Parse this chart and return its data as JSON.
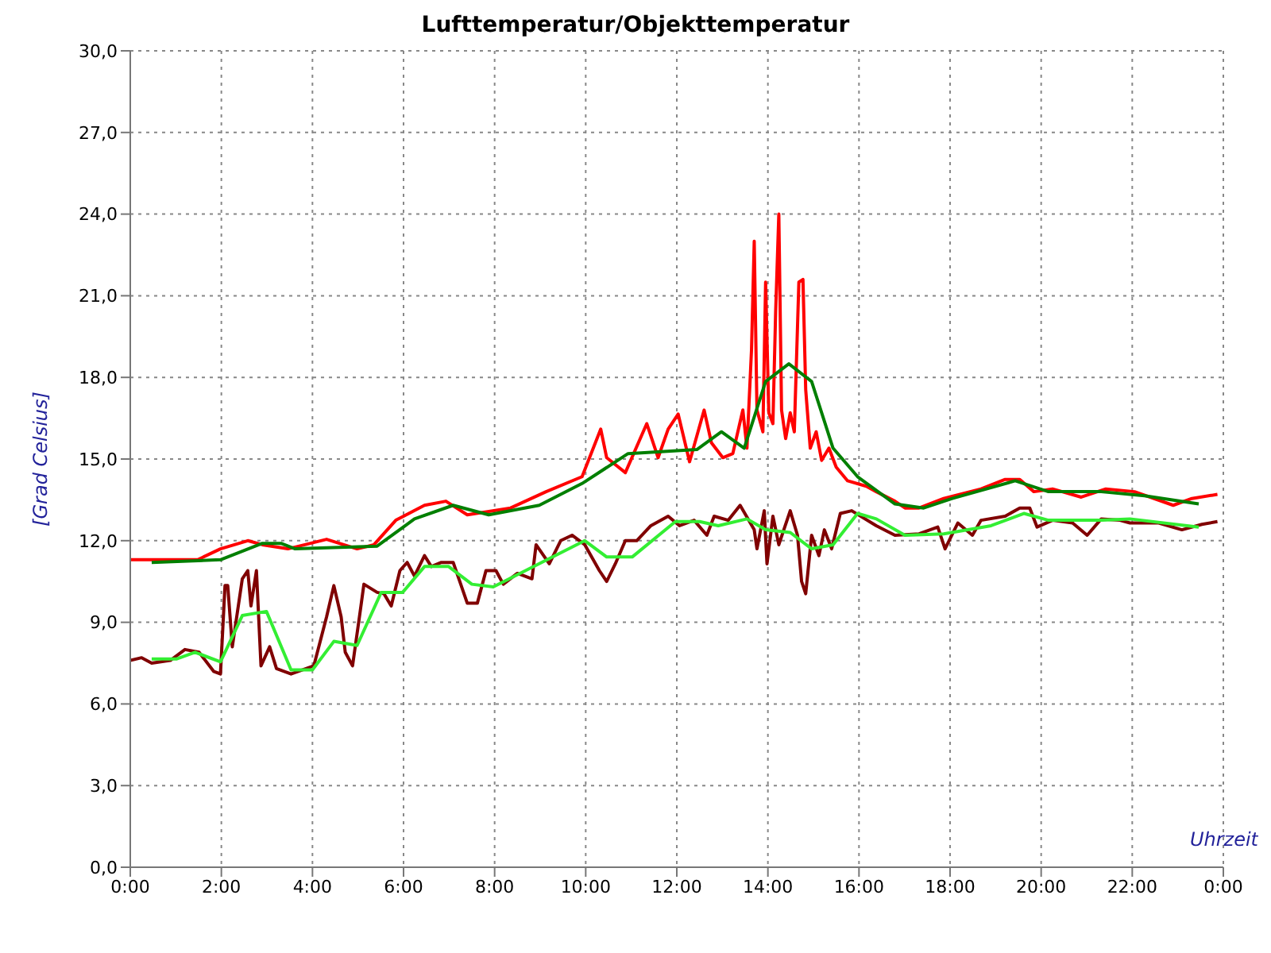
{
  "chart_data": {
    "type": "line",
    "title": "Lufttemperatur/Objekttemperatur",
    "xlabel": "Uhrzeit",
    "ylabel": "[Grad Celsius]",
    "xlim": [
      0,
      24
    ],
    "ylim": [
      0,
      30
    ],
    "xticks": [
      {
        "value": 0,
        "label": "0:00"
      },
      {
        "value": 2,
        "label": "2:00"
      },
      {
        "value": 4,
        "label": "4:00"
      },
      {
        "value": 6,
        "label": "6:00"
      },
      {
        "value": 8,
        "label": "8:00"
      },
      {
        "value": 10,
        "label": "10:00"
      },
      {
        "value": 12,
        "label": "12:00"
      },
      {
        "value": 14,
        "label": "14:00"
      },
      {
        "value": 16,
        "label": "16:00"
      },
      {
        "value": 18,
        "label": "18:00"
      },
      {
        "value": 20,
        "label": "20:00"
      },
      {
        "value": 22,
        "label": "22:00"
      },
      {
        "value": 24,
        "label": "0:00"
      }
    ],
    "yticks": [
      {
        "value": 0,
        "label": "0,0"
      },
      {
        "value": 3,
        "label": "3,0"
      },
      {
        "value": 6,
        "label": "6,0"
      },
      {
        "value": 9,
        "label": "9,0"
      },
      {
        "value": 12,
        "label": "12,0"
      },
      {
        "value": 15,
        "label": "15,0"
      },
      {
        "value": 18,
        "label": "18,0"
      },
      {
        "value": 21,
        "label": "21,0"
      },
      {
        "value": 24,
        "label": "24,0"
      },
      {
        "value": 27,
        "label": "27,0"
      },
      {
        "value": 30,
        "label": "30,0"
      }
    ],
    "grid": true,
    "series": [
      {
        "color": "#ff0000",
        "x": [
          0,
          1.48,
          1.98,
          2.58,
          2.9,
          3.46,
          4.31,
          4.98,
          5.35,
          5.83,
          6.46,
          6.93,
          7.4,
          8.35,
          9.13,
          9.92,
          10.33,
          10.46,
          10.87,
          11.34,
          11.59,
          11.81,
          12.03,
          12.28,
          12.6,
          12.76,
          13.01,
          13.23,
          13.45,
          13.54,
          13.64,
          13.7,
          13.76,
          13.89,
          13.95,
          14.02,
          14.11,
          14.17,
          14.24,
          14.3,
          14.39,
          14.49,
          14.58,
          14.68,
          14.77,
          14.83,
          14.93,
          15.06,
          15.18,
          15.34,
          15.5,
          15.75,
          16.16,
          16.38,
          16.79,
          17.01,
          17.32,
          17.86,
          18.68,
          19.21,
          19.53,
          19.84,
          20.25,
          20.88,
          21.42,
          22.05,
          22.9,
          23.31,
          23.87
        ],
        "values": [
          11.3,
          11.3,
          11.7,
          12.0,
          11.85,
          11.7,
          12.05,
          11.7,
          11.85,
          12.75,
          13.3,
          13.45,
          12.95,
          13.2,
          13.8,
          14.35,
          16.1,
          15.05,
          14.5,
          16.3,
          15.05,
          16.1,
          16.65,
          14.9,
          16.8,
          15.6,
          15.05,
          15.2,
          16.8,
          15.4,
          19.0,
          23.0,
          16.8,
          16.0,
          21.5,
          16.7,
          16.3,
          20.4,
          24.0,
          16.8,
          15.75,
          16.7,
          16.0,
          21.5,
          21.6,
          17.55,
          15.4,
          16.0,
          14.95,
          15.4,
          14.7,
          14.2,
          14.0,
          13.8,
          13.45,
          13.2,
          13.2,
          13.55,
          13.9,
          14.25,
          14.25,
          13.8,
          13.9,
          13.6,
          13.9,
          13.8,
          13.3,
          13.55,
          13.7
        ]
      },
      {
        "color": "#007f00",
        "x": [
          0.47,
          1.98,
          2.9,
          3.31,
          3.62,
          5.42,
          6.24,
          7.09,
          7.87,
          8.98,
          9.92,
          10.93,
          12.44,
          12.98,
          13.48,
          13.95,
          14.46,
          14.96,
          15.43,
          15.97,
          16.79,
          17.42,
          18.05,
          19.43,
          20.16,
          21.32,
          22.27,
          23.46
        ],
        "values": [
          11.2,
          11.3,
          11.9,
          11.9,
          11.7,
          11.8,
          12.8,
          13.3,
          12.95,
          13.3,
          14.1,
          15.2,
          15.35,
          16.0,
          15.4,
          17.85,
          18.5,
          17.85,
          15.4,
          14.35,
          13.35,
          13.2,
          13.55,
          14.2,
          13.8,
          13.8,
          13.65,
          13.35
        ]
      },
      {
        "color": "#800000",
        "x": [
          0,
          0.25,
          0.47,
          0.88,
          1.2,
          1.51,
          1.83,
          1.98,
          2.08,
          2.14,
          2.24,
          2.46,
          2.58,
          2.65,
          2.77,
          2.87,
          3.06,
          3.21,
          3.53,
          4.03,
          4.31,
          4.47,
          4.63,
          4.72,
          4.88,
          5.04,
          5.13,
          5.42,
          5.57,
          5.73,
          5.92,
          6.08,
          6.24,
          6.46,
          6.61,
          6.83,
          7.09,
          7.4,
          7.62,
          7.81,
          8.03,
          8.19,
          8.5,
          8.82,
          8.91,
          9.2,
          9.45,
          9.7,
          9.98,
          10.3,
          10.46,
          10.65,
          10.87,
          11.12,
          11.43,
          11.81,
          12.06,
          12.38,
          12.66,
          12.82,
          13.13,
          13.39,
          13.7,
          13.76,
          13.92,
          13.98,
          14.11,
          14.24,
          14.49,
          14.65,
          14.74,
          14.83,
          14.96,
          15.12,
          15.24,
          15.4,
          15.59,
          15.84,
          16.38,
          16.79,
          17.32,
          17.73,
          17.89,
          18.17,
          18.49,
          18.68,
          19.21,
          19.53,
          19.75,
          19.91,
          20.25,
          20.69,
          21.01,
          21.32,
          21.73,
          21.95,
          22.58,
          23.09,
          23.53,
          23.87
        ],
        "values": [
          7.6,
          7.7,
          7.5,
          7.6,
          8.0,
          7.9,
          7.2,
          7.1,
          10.35,
          10.35,
          8.1,
          10.6,
          10.9,
          9.6,
          10.9,
          7.4,
          8.1,
          7.3,
          7.1,
          7.4,
          9.2,
          10.35,
          9.2,
          7.9,
          7.4,
          9.3,
          10.4,
          10.1,
          10.05,
          9.6,
          10.9,
          11.2,
          10.7,
          11.45,
          11.05,
          11.2,
          11.2,
          9.7,
          9.7,
          10.9,
          10.9,
          10.4,
          10.8,
          10.6,
          11.85,
          11.15,
          12.0,
          12.2,
          11.85,
          10.9,
          10.5,
          11.15,
          12.0,
          12.0,
          12.55,
          12.9,
          12.55,
          12.75,
          12.2,
          12.9,
          12.75,
          13.3,
          12.4,
          11.7,
          13.1,
          11.15,
          12.9,
          11.85,
          13.1,
          12.2,
          10.5,
          10.05,
          12.2,
          11.45,
          12.4,
          11.7,
          13.0,
          13.1,
          12.55,
          12.2,
          12.25,
          12.5,
          11.7,
          12.65,
          12.2,
          12.75,
          12.9,
          13.2,
          13.2,
          12.5,
          12.75,
          12.65,
          12.2,
          12.8,
          12.75,
          12.65,
          12.65,
          12.4,
          12.6,
          12.7
        ]
      },
      {
        "color": "#33ee33",
        "x": [
          0.47,
          1.01,
          1.42,
          1.98,
          2.46,
          2.99,
          3.53,
          4.0,
          4.47,
          4.98,
          5.51,
          5.98,
          6.46,
          6.99,
          7.5,
          7.97,
          9.98,
          10.46,
          11.02,
          11.97,
          12.5,
          12.91,
          13.54,
          13.95,
          14.49,
          14.96,
          15.43,
          15.97,
          16.38,
          17.01,
          17.86,
          18.9,
          19.62,
          20.16,
          21.32,
          21.95,
          23.46
        ],
        "values": [
          7.65,
          7.65,
          7.9,
          7.55,
          9.25,
          9.4,
          7.25,
          7.25,
          8.3,
          8.15,
          10.1,
          10.1,
          11.05,
          11.05,
          10.4,
          10.3,
          12.0,
          11.4,
          11.4,
          12.7,
          12.7,
          12.55,
          12.8,
          12.4,
          12.3,
          11.7,
          11.85,
          13.0,
          12.8,
          12.2,
          12.25,
          12.55,
          13.0,
          12.75,
          12.75,
          12.8,
          12.5
        ]
      }
    ]
  }
}
